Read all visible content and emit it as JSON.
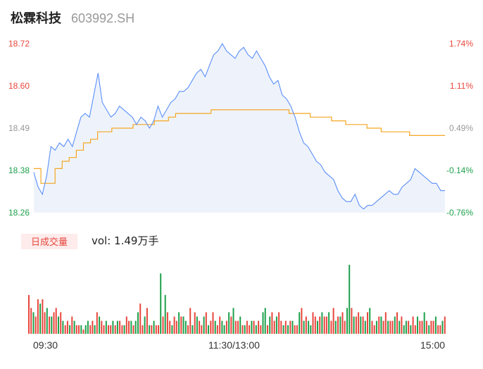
{
  "header": {
    "name": "松霖科技",
    "code": "603992.SH"
  },
  "volume_tag": "日成交量",
  "volume_label": "vol: 1.49万手",
  "colors": {
    "price_line": "#5b8ff9",
    "avg_line": "#f5a623",
    "up": "#e8463c",
    "down": "#1ea04b",
    "flat": "#999999",
    "area": "#eef3fb"
  },
  "chart_data": {
    "type": "line",
    "price_axis": {
      "ticks": [
        "18.72",
        "18.60",
        "18.49",
        "18.38",
        "18.26"
      ],
      "ylim": [
        18.26,
        18.72
      ]
    },
    "pct_axis": {
      "ticks": [
        "1.74%",
        "1.11%",
        "0.49%",
        "-0.14%",
        "-0.76%"
      ]
    },
    "time_labels": [
      "09:30",
      "11:30/13:00",
      "15:00"
    ],
    "series": [
      {
        "key": "price",
        "values": [
          18.37,
          18.33,
          18.31,
          18.36,
          18.44,
          18.43,
          18.45,
          18.44,
          18.46,
          18.44,
          18.48,
          18.52,
          18.53,
          18.52,
          18.58,
          18.64,
          18.56,
          18.54,
          18.52,
          18.53,
          18.55,
          18.54,
          18.53,
          18.52,
          18.5,
          18.52,
          18.51,
          18.49,
          18.51,
          18.55,
          18.52,
          18.54,
          18.56,
          18.57,
          18.59,
          18.59,
          18.6,
          18.62,
          18.64,
          18.65,
          18.63,
          18.66,
          18.69,
          18.7,
          18.72,
          18.7,
          18.69,
          18.68,
          18.7,
          18.71,
          18.69,
          18.68,
          18.7,
          18.68,
          18.66,
          18.63,
          18.61,
          18.62,
          18.58,
          18.57,
          18.55,
          18.52,
          18.48,
          18.45,
          18.44,
          18.42,
          18.4,
          18.39,
          18.37,
          18.36,
          18.35,
          18.32,
          18.3,
          18.29,
          18.29,
          18.31,
          18.28,
          18.27,
          18.28,
          18.28,
          18.29,
          18.3,
          18.31,
          18.32,
          18.31,
          18.31,
          18.33,
          18.34,
          18.35,
          18.38,
          18.37,
          18.36,
          18.35,
          18.34,
          18.34,
          18.32,
          18.32
        ]
      },
      {
        "key": "average",
        "values": [
          18.38,
          18.34,
          18.34,
          18.38,
          18.4,
          18.41,
          18.43,
          18.45,
          18.46,
          18.48,
          18.48,
          18.49,
          18.49,
          18.49,
          18.5,
          18.5,
          18.5,
          18.51,
          18.51,
          18.52,
          18.53,
          18.53,
          18.53,
          18.53,
          18.53,
          18.54,
          18.54,
          18.54,
          18.54,
          18.54,
          18.54,
          18.54,
          18.54,
          18.54,
          18.54,
          18.54,
          18.53,
          18.53,
          18.53,
          18.52,
          18.52,
          18.52,
          18.51,
          18.51,
          18.5,
          18.5,
          18.5,
          18.49,
          18.49,
          18.48,
          18.48,
          18.48,
          18.48,
          18.47,
          18.47,
          18.47,
          18.47,
          18.47,
          18.47
        ]
      }
    ],
    "volume": [
      9,
      6,
      5,
      4,
      8,
      7,
      8,
      5,
      6,
      4,
      4,
      5,
      6,
      4,
      5,
      3,
      2,
      3,
      2,
      4,
      3,
      2,
      2,
      2,
      1,
      2,
      3,
      2,
      3,
      2,
      5,
      4,
      3,
      2,
      3,
      2,
      2,
      3,
      2,
      3,
      3,
      2,
      2,
      4,
      3,
      3,
      2,
      3,
      5,
      7,
      2,
      4,
      6,
      2,
      2,
      3,
      2,
      2,
      14,
      4,
      9,
      5,
      3,
      2,
      4,
      3,
      5,
      4,
      4,
      3,
      2,
      6,
      2,
      5,
      4,
      3,
      2,
      4,
      5,
      2,
      3,
      5,
      3,
      2,
      4,
      3,
      2,
      3,
      5,
      4,
      6,
      3,
      3,
      4,
      2,
      2,
      3,
      2,
      3,
      3,
      2,
      3,
      2,
      5,
      6,
      2,
      4,
      5,
      3,
      4,
      5,
      3,
      2,
      3,
      2,
      3,
      3,
      2,
      2,
      5,
      6,
      3,
      4,
      3,
      2,
      5,
      4,
      3,
      4,
      5,
      4,
      4,
      5,
      3,
      6,
      3,
      4,
      4,
      5,
      3,
      6,
      16,
      6,
      4,
      4,
      5,
      4,
      4,
      3,
      5,
      6,
      3,
      2,
      3,
      4,
      4,
      3,
      5,
      3,
      3,
      3,
      4,
      5,
      3,
      4,
      2,
      3,
      3,
      2,
      4,
      2,
      4,
      3,
      3,
      5,
      3,
      2,
      3,
      3,
      4,
      2,
      2,
      3,
      4
    ],
    "volume_colors": "rrgrrgrrgrgrrgrgrrgrgrrgrggrrgrgrrgrrgrgrrgrrgrggrrgrgrgrrgrgrrgrrgrggrrgrgrrgrgrrgrrggrgrgrrgrgrrgrgrrggrgrrgrrgrgrgrrgrgrggrrgrgrrgrrgrgrrggrgrrgrgrgrrgrgrrgrrgrgrggrgrrgrrgrgrrgrrgrgrrgrgrr"
  }
}
